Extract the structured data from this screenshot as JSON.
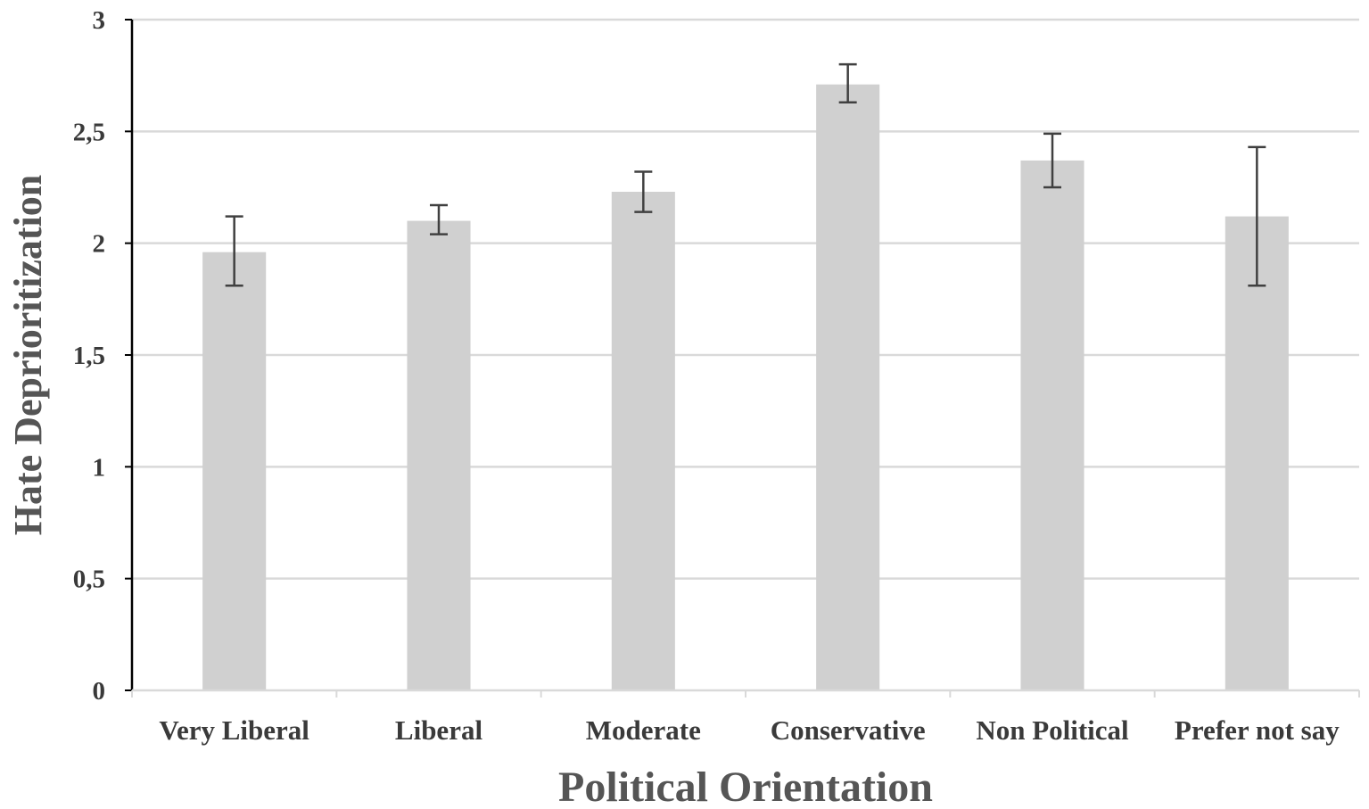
{
  "chart_data": {
    "type": "bar",
    "title": "",
    "xlabel": "Political Orientation",
    "ylabel": "Hate Deprioritization",
    "categories": [
      "Very Liberal",
      "Liberal",
      "Moderate",
      "Conservative",
      "Non Political",
      "Prefer not say"
    ],
    "series": [
      {
        "values": [
          1.96,
          2.1,
          2.23,
          2.71,
          2.37,
          2.12
        ],
        "error_low": [
          1.81,
          2.04,
          2.14,
          2.63,
          2.25,
          1.81
        ],
        "error_high": [
          2.12,
          2.17,
          2.32,
          2.8,
          2.49,
          2.43
        ]
      }
    ],
    "ylim": [
      0,
      3
    ],
    "yticks": [
      "0",
      "0,5",
      "1",
      "1,5",
      "2",
      "2,5",
      "3"
    ],
    "grid": true,
    "legend": "none",
    "colors": {
      "bar": "#d0d0d0",
      "grid": "#d9d9d9",
      "axis": "#000000",
      "error_bar": "#404040",
      "text": "#3a3a3a",
      "title_text": "#555555"
    }
  }
}
